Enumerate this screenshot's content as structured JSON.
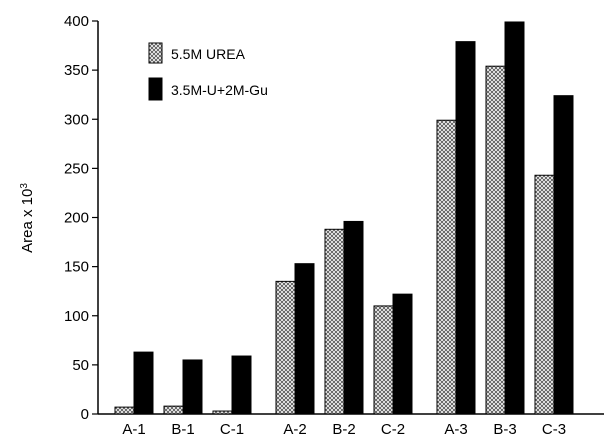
{
  "chart_data": {
    "type": "bar",
    "categories": [
      "A-1",
      "B-1",
      "C-1",
      "A-2",
      "B-2",
      "C-2",
      "A-3",
      "B-3",
      "C-3"
    ],
    "groups": [
      3,
      3,
      3
    ],
    "series": [
      {
        "name": "5.5M UREA",
        "values": [
          7,
          8,
          3,
          135,
          188,
          110,
          299,
          354,
          243
        ],
        "pattern": "crosshatch",
        "color": "#c8c8c8"
      },
      {
        "name": "3.5M-U+2M-Gu",
        "values": [
          63,
          55,
          59,
          153,
          196,
          122,
          379,
          399,
          324
        ],
        "pattern": "solid",
        "color": "#000000"
      }
    ],
    "title": "",
    "xlabel": "",
    "ylabel": "Area x 10",
    "ylabel_superscript": "3",
    "ylim": [
      0,
      400
    ],
    "yticks": [
      0,
      50,
      100,
      150,
      200,
      250,
      300,
      350,
      400
    ],
    "grid": false,
    "legend_position": "top-left"
  }
}
